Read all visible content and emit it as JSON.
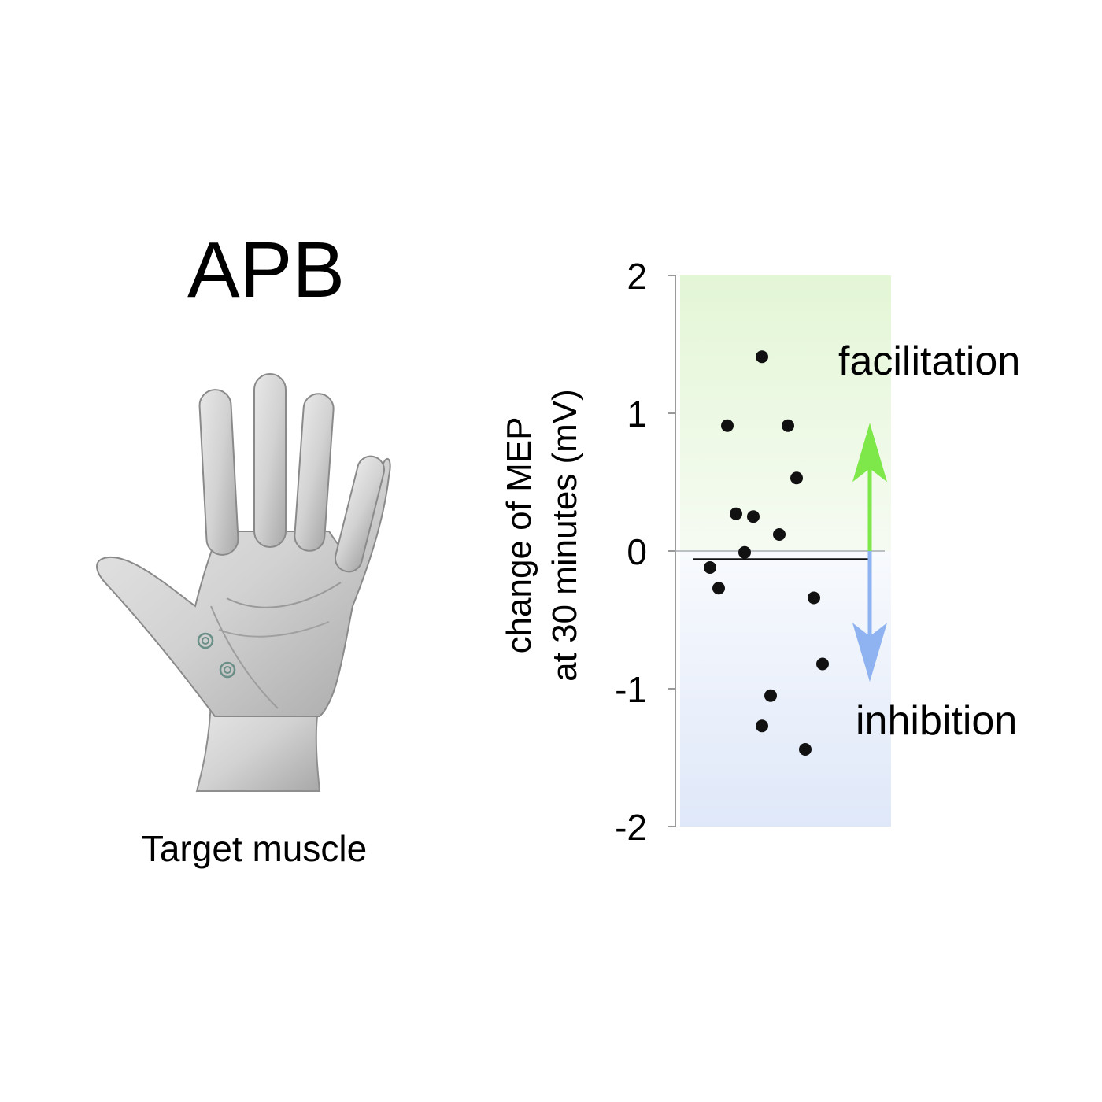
{
  "panel": {
    "title": "APB",
    "caption": "Target muscle"
  },
  "colors": {
    "facilitation_band": "#e3f6d6",
    "inhibition_band": "#dfe8f9",
    "facilitation_arrow": "#7ee84a",
    "inhibition_arrow": "#8fb2f0",
    "points": "#111111",
    "electrode": "#6a8f86"
  },
  "icons": {
    "hand": "open-palm-hand-icon",
    "electrode": "electrode-marker-icon"
  },
  "chart_data": {
    "type": "scatter",
    "ylabel_line1": "change of MEP",
    "ylabel_line2": "at 30 minutes (mV)",
    "ylim": [
      -2,
      2
    ],
    "yticks": [
      2,
      1,
      0,
      -1,
      -2
    ],
    "ytick_labels": [
      "2",
      "1",
      "0",
      "-1",
      "-2"
    ],
    "grid": false,
    "reference_line_y": 0,
    "mean_line_y": -0.06,
    "annotations": [
      {
        "text": "facilitation",
        "y": 1.28
      },
      {
        "text": "inhibition",
        "y": -1.33
      }
    ],
    "arrows": [
      {
        "name": "facilitation-arrow",
        "from_y": 0,
        "to_y": 0.93
      },
      {
        "name": "inhibition-arrow",
        "from_y": 0,
        "to_y": -0.95
      }
    ],
    "x": [
      0.1,
      0.15,
      0.2,
      0.25,
      0.3,
      0.35,
      0.4,
      0.4,
      0.45,
      0.5,
      0.55,
      0.6,
      0.65,
      0.7,
      0.75
    ],
    "points": [
      -0.12,
      -0.27,
      0.91,
      0.27,
      -0.01,
      0.25,
      1.41,
      -1.27,
      -1.05,
      0.12,
      0.91,
      0.53,
      -1.44,
      -0.34,
      -0.82
    ]
  }
}
